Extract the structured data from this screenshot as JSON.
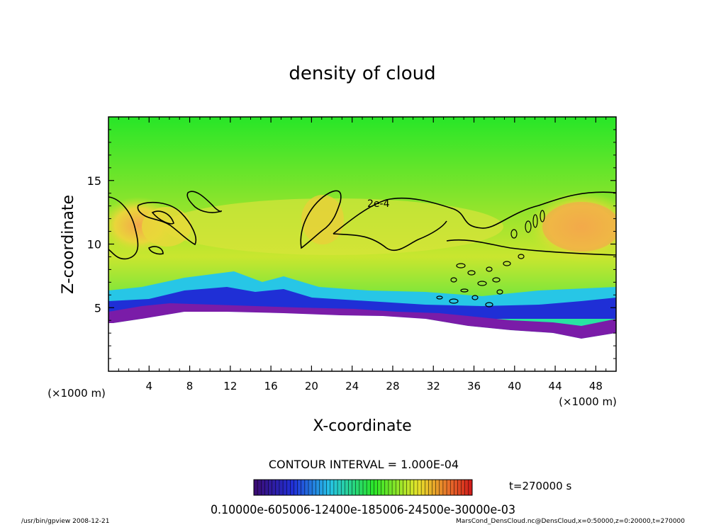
{
  "chart_data": {
    "type": "heatmap",
    "title": "density of cloud",
    "xlabel": "X-coordinate",
    "ylabel": "Z-coordinate",
    "x_unit": "(×1000 m)",
    "y_unit": "(×1000 m)",
    "xlim": [
      0,
      50
    ],
    "ylim": [
      0,
      20
    ],
    "x_ticks": [
      4,
      8,
      12,
      16,
      20,
      24,
      28,
      32,
      36,
      40,
      44,
      48
    ],
    "y_ticks": [
      5,
      10,
      15
    ],
    "contour_label": "2e-4",
    "contour_interval": "CONTOUR INTERVAL = 1.000E-04",
    "time_label": "t=270000 s",
    "colorbar_labels": "0.10000e-605006-12400e-185006-24500e-30000e-03",
    "colors": {
      "purple": "#7a1ca8",
      "blue": "#1f2fd6",
      "cyan": "#27c6e6",
      "green": "#27e628",
      "yellow": "#e8e42a",
      "orange": "#f2a94a"
    }
  },
  "footer": {
    "left": "/usr/bin/gpview  2008-12-21",
    "right": "MarsCond_DensCloud.nc@DensCloud,x=0:50000,z=0:20000,t=270000"
  }
}
